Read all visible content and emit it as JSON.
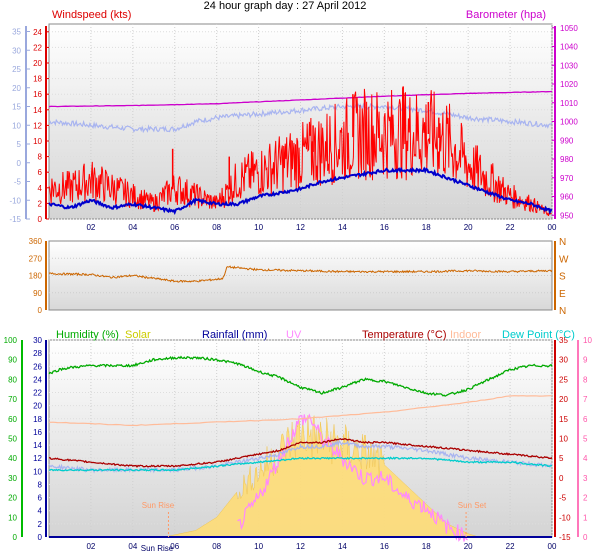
{
  "chart_data": [
    {
      "type": "line",
      "title": "24 hour graph day : 27 April 2012",
      "x_ticks": [
        "02",
        "04",
        "06",
        "08",
        "10",
        "12",
        "14",
        "16",
        "18",
        "20",
        "22",
        "00"
      ],
      "left_axis": {
        "label": "Windspeed (kts)",
        "ticks": [
          "0",
          "2",
          "4",
          "6",
          "8",
          "10",
          "12",
          "14",
          "16",
          "18",
          "20",
          "22",
          "24"
        ],
        "ylim": [
          0,
          25
        ],
        "color": "#dd0000"
      },
      "left_outer_axis": {
        "ticks": [
          "-15",
          "-10",
          "-5",
          "0",
          "5",
          "10",
          "15",
          "20",
          "25",
          "30",
          "35"
        ],
        "ylim": [
          -15,
          37
        ],
        "color": "#9aa8dd"
      },
      "right_axis": {
        "label": "Barometer (hpa)",
        "ticks": [
          "950",
          "960",
          "970",
          "980",
          "990",
          "1000",
          "1010",
          "1020",
          "1030",
          "1040",
          "1050"
        ],
        "ylim": [
          948,
          1052
        ],
        "color": "#cc00cc"
      },
      "series": [
        {
          "role": "wind-speed",
          "color": "#ff0000",
          "x": [
            0,
            1,
            2,
            3,
            4,
            5,
            6,
            7,
            8,
            9,
            10,
            11,
            12,
            13,
            14,
            15,
            16,
            17,
            18,
            19,
            20,
            21,
            22,
            23,
            24
          ],
          "y": [
            4,
            4,
            5,
            4,
            3,
            2,
            4,
            3,
            2,
            5,
            6,
            7,
            8,
            9,
            10,
            11,
            11,
            11,
            11,
            10,
            7,
            5,
            3,
            2,
            0.5
          ]
        },
        {
          "role": "wind-gust-peaks",
          "color": "#ff0000",
          "x": [
            5.9,
            8.6,
            11.6,
            12.6,
            14.5,
            16.9,
            18.1,
            18.6
          ],
          "y": [
            9,
            8,
            10,
            12,
            16,
            17,
            15,
            13
          ]
        },
        {
          "role": "wind-direction-degrees",
          "color": "#cc6600",
          "x": [
            0,
            2,
            3,
            4,
            5,
            6,
            7,
            8,
            8.3,
            8.5,
            10,
            12,
            14,
            16,
            18,
            20,
            22,
            24
          ],
          "y": [
            190,
            185,
            170,
            180,
            165,
            150,
            150,
            160,
            165,
            225,
            210,
            205,
            200,
            200,
            200,
            205,
            200,
            205
          ]
        },
        {
          "role": "barometer-hpa",
          "color": "#cc00cc",
          "x": [
            0,
            4,
            8,
            12,
            16,
            20,
            24
          ],
          "y": [
            1008,
            1008.5,
            1009.5,
            1011.5,
            1013.5,
            1015,
            1016
          ]
        },
        {
          "role": "temperature-trend",
          "color": "#0000cc",
          "x": [
            0,
            1,
            2,
            3,
            4,
            5,
            6,
            7,
            8,
            9,
            10,
            11,
            12,
            13,
            14,
            15,
            16,
            17,
            18,
            19,
            20,
            21,
            22,
            23,
            24
          ],
          "y": [
            -11,
            -12,
            -10,
            -12,
            -11,
            -12,
            -13,
            -10,
            -11,
            -11,
            -9,
            -8,
            -7,
            -5,
            -4,
            -3,
            -2,
            -2,
            -2,
            -4,
            -6,
            -8,
            -10,
            -11,
            -13
          ]
        },
        {
          "role": "lavender-trend",
          "color": "#a8b4f0",
          "x": [
            0,
            2,
            4,
            6,
            7,
            8,
            10,
            12,
            14,
            16,
            18,
            19,
            20,
            22,
            24
          ],
          "y": [
            11,
            10,
            9,
            9,
            11,
            12,
            13,
            14,
            15,
            15,
            14,
            13,
            12,
            11,
            10
          ]
        }
      ]
    },
    {
      "type": "line",
      "ticks_left": [
        "0",
        "90",
        "180",
        "270",
        "360"
      ],
      "ylim": [
        0,
        360
      ],
      "compass": [
        "N",
        "W",
        "S",
        "E",
        "N"
      ]
    },
    {
      "type": "line",
      "legend": [
        {
          "label": "Humidity (%)",
          "color": "#00aa00"
        },
        {
          "label": "Solar",
          "color": "#cccc00"
        },
        {
          "label": "Rainfall (mm)",
          "color": "#000099"
        },
        {
          "label": "UV",
          "color": "#ff88ff"
        },
        {
          "label": "Temperature (°C)",
          "color": "#aa0000"
        },
        {
          "label": "Indoor",
          "color": "#ffbb99"
        },
        {
          "label": "Dew Point (°C)",
          "color": "#00cccc"
        }
      ],
      "x_ticks": [
        "02",
        "04",
        "06",
        "08",
        "10",
        "12",
        "14",
        "16",
        "18",
        "20",
        "22",
        "00"
      ],
      "annotations": [
        "Sun Rise",
        "Sun Rise",
        "Sun Set"
      ],
      "humidity_axis": {
        "ticks": [
          "0",
          "10",
          "20",
          "30",
          "40",
          "50",
          "60",
          "70",
          "80",
          "90",
          "100"
        ],
        "ylim": [
          0,
          100
        ]
      },
      "rain_axis": {
        "ticks": [
          "0",
          "2",
          "4",
          "6",
          "8",
          "10",
          "12",
          "14",
          "16",
          "18",
          "20",
          "22",
          "24",
          "26",
          "28",
          "30"
        ],
        "ylim": [
          0,
          30
        ]
      },
      "temp_axis": {
        "ticks": [
          "-15",
          "-10",
          "-5",
          "0",
          "5",
          "10",
          "15",
          "20",
          "25",
          "30",
          "35"
        ],
        "ylim": [
          -15,
          35
        ]
      },
      "uv_axis": {
        "ticks": [
          "0",
          "1",
          "2",
          "3",
          "4",
          "5",
          "6",
          "7",
          "8",
          "9",
          "10"
        ],
        "ylim": [
          0,
          10
        ]
      },
      "series": [
        {
          "name": "Humidity (%)",
          "color": "#00aa00",
          "x": [
            0,
            0.5,
            1,
            2,
            3,
            4,
            5,
            6,
            7,
            8,
            9,
            10,
            11,
            12,
            13,
            14,
            15,
            16,
            17,
            18,
            19,
            20,
            21,
            22,
            23,
            24
          ],
          "y": [
            83,
            85,
            86,
            87,
            87,
            87,
            90,
            91,
            91,
            90,
            88,
            84,
            81,
            76,
            73,
            76,
            80,
            79,
            76,
            73,
            72,
            75,
            80,
            85,
            87,
            87
          ]
        },
        {
          "name": "Indoor",
          "color": "#ffbb99",
          "x": [
            0,
            4,
            8,
            12,
            16,
            20,
            22,
            24
          ],
          "y": [
            17.5,
            17,
            17.5,
            18,
            19,
            20.5,
            21.5,
            21.5
          ]
        },
        {
          "name": "Temperature (°C)",
          "color": "#aa0000",
          "x": [
            0,
            2,
            4,
            6,
            8,
            10,
            11,
            12,
            13,
            14,
            15,
            16,
            18,
            20,
            22,
            24
          ],
          "y": [
            5,
            4,
            3,
            3,
            4,
            6,
            7,
            9,
            9,
            10,
            9,
            9,
            8,
            7,
            6,
            5
          ]
        },
        {
          "name": "lavender-trend",
          "color": "#a8b4f0",
          "x": [
            0,
            2,
            4,
            6,
            8,
            10,
            11,
            12,
            13,
            14,
            15,
            16,
            18,
            20,
            22,
            24
          ],
          "y": [
            3,
            2,
            2,
            2,
            3,
            5,
            6,
            8,
            8,
            9,
            8,
            8,
            7,
            5,
            4,
            3
          ]
        },
        {
          "name": "Dew Point (°C)",
          "color": "#00cccc",
          "x": [
            0,
            2,
            4,
            6,
            8,
            10,
            12,
            14,
            16,
            18,
            20,
            22,
            24
          ],
          "y": [
            2,
            2,
            2,
            2,
            3,
            4,
            5,
            5,
            5,
            5,
            4,
            4,
            3
          ]
        },
        {
          "name": "Solar",
          "color": "#ffdd77",
          "x": [
            5.5,
            7,
            8,
            9,
            10,
            11,
            12,
            13,
            14,
            15,
            16,
            17,
            18,
            19,
            20,
            20.5
          ],
          "y": [
            0,
            1,
            3,
            7,
            10,
            13,
            16,
            15,
            14,
            13,
            11,
            8,
            5,
            2,
            0.5,
            0
          ]
        },
        {
          "name": "UV",
          "color": "#ff88ff",
          "x": [
            9,
            10,
            11,
            11.5,
            12,
            12.5,
            13,
            14,
            15,
            16,
            17,
            18,
            19,
            20
          ],
          "y": [
            0.5,
            2,
            4,
            5,
            6,
            6,
            5,
            4,
            3,
            3,
            2,
            1.5,
            0.5,
            0
          ]
        },
        {
          "name": "Rainfall (mm)",
          "color": "#000099",
          "x": [
            0,
            24
          ],
          "y": [
            0,
            0
          ]
        }
      ]
    }
  ]
}
